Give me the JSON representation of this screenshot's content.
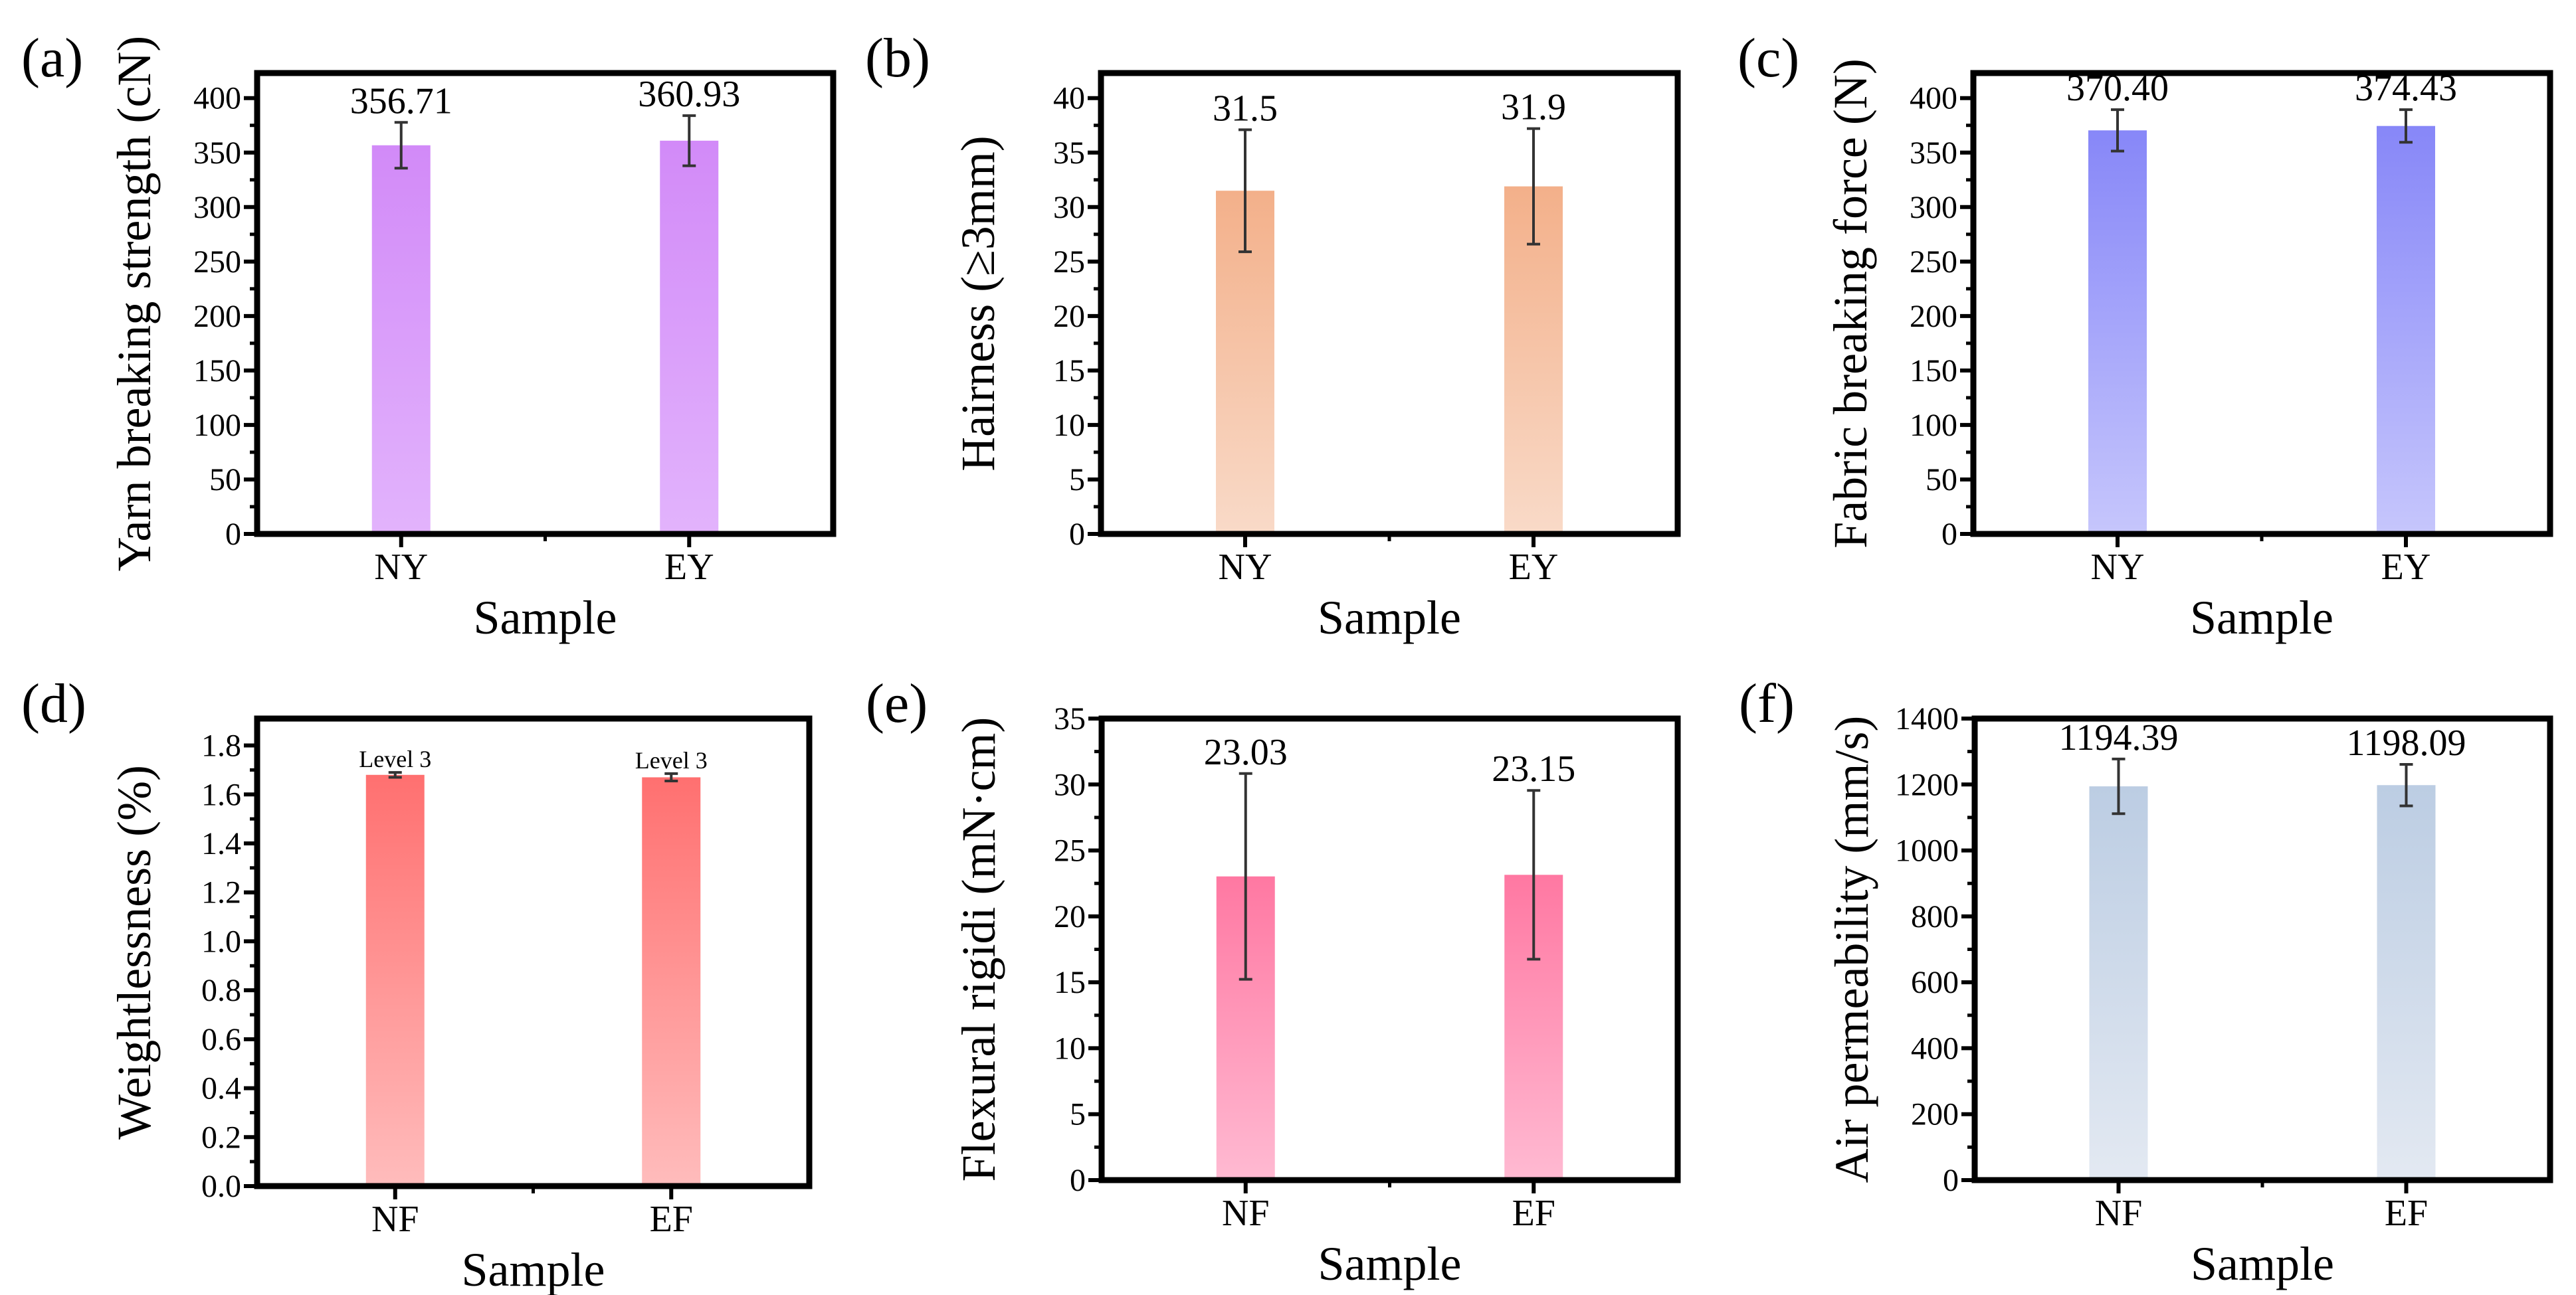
{
  "chart_data": [
    {
      "type": "bar",
      "panel_label": "(a)",
      "ylabel": "Yarn breaking strength (cN)",
      "xlabel": "Sample",
      "categories": [
        "NY",
        "EY"
      ],
      "values": [
        356.71,
        360.93
      ],
      "errors": [
        21,
        23
      ],
      "value_labels": [
        "356.71",
        "360.93"
      ],
      "ylim": [
        0,
        423
      ],
      "yticks": [
        "0",
        "50",
        "100",
        "150",
        "200",
        "250",
        "300",
        "350",
        "400"
      ],
      "colors": [
        "#d28af8",
        "#e2b3fc"
      ]
    },
    {
      "type": "bar",
      "panel_label": "(b)",
      "ylabel": "Hairness (≥3mm)",
      "xlabel": "Sample",
      "categories": [
        "NY",
        "EY"
      ],
      "values": [
        31.5,
        31.9
      ],
      "errors": [
        5.6,
        5.3
      ],
      "value_labels": [
        "31.5",
        "31.9"
      ],
      "ylim": [
        0,
        42.3
      ],
      "yticks": [
        "0",
        "5",
        "10",
        "15",
        "20",
        "25",
        "30",
        "35",
        "40"
      ],
      "colors": [
        "#f3b08a",
        "#f9dac8"
      ]
    },
    {
      "type": "bar",
      "panel_label": "(c)",
      "ylabel": "Fabric breaking force (N)",
      "xlabel": "Sample",
      "categories": [
        "NY",
        "EY"
      ],
      "values": [
        370.4,
        374.43
      ],
      "errors": [
        19,
        15
      ],
      "value_labels": [
        "370.40",
        "374.43"
      ],
      "ylim": [
        0,
        423
      ],
      "yticks": [
        "0",
        "50",
        "100",
        "150",
        "200",
        "250",
        "300",
        "350",
        "400"
      ],
      "colors": [
        "#8787f8",
        "#c6c6fc"
      ]
    },
    {
      "type": "bar",
      "panel_label": "(d)",
      "ylabel": "Weightlessness (%)",
      "xlabel": "Sample",
      "categories": [
        "NF",
        "EF"
      ],
      "values": [
        1.68,
        1.67
      ],
      "errors": [
        0.01,
        0.015
      ],
      "value_labels": [
        "Level 3",
        "Level 3"
      ],
      "ylim": [
        0,
        1.91
      ],
      "yticks": [
        "0.0",
        "0.2",
        "0.4",
        "0.6",
        "0.8",
        "1.0",
        "1.2",
        "1.4",
        "1.6",
        "1.8"
      ],
      "colors": [
        "#ff7070",
        "#ffbcbc"
      ]
    },
    {
      "type": "bar",
      "panel_label": "(e)",
      "ylabel": "Flexural rigidi (mN·cm)",
      "xlabel": "Sample",
      "categories": [
        "NF",
        "EF"
      ],
      "values": [
        23.03,
        23.15
      ],
      "errors": [
        7.8,
        6.4
      ],
      "value_labels": [
        "23.03",
        "23.15"
      ],
      "ylim": [
        0,
        35
      ],
      "yticks": [
        "0",
        "5",
        "10",
        "15",
        "20",
        "25",
        "30",
        "35"
      ],
      "colors": [
        "#ff78a2",
        "#ffbad2"
      ]
    },
    {
      "type": "bar",
      "panel_label": "(f)",
      "ylabel": "Air permeability (mm/s)",
      "xlabel": "Sample",
      "categories": [
        "NF",
        "EF"
      ],
      "values": [
        1194.39,
        1198.09
      ],
      "errors": [
        83,
        63
      ],
      "value_labels": [
        "1194.39",
        "1198.09"
      ],
      "ylim": [
        0,
        1400
      ],
      "yticks": [
        "0",
        "200",
        "400",
        "600",
        "800",
        "1000",
        "1200",
        "1400"
      ],
      "colors": [
        "#bccde3",
        "#e3e9f2"
      ]
    }
  ]
}
